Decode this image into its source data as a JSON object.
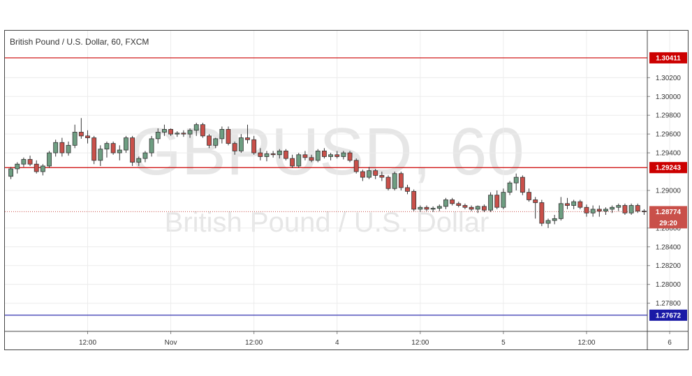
{
  "header": {
    "title": "British Pound / U.S. Dollar, 60, FXCM"
  },
  "watermark": {
    "symbol": "GBPUSD, 60",
    "name": "British Pound / U.S. Dollar"
  },
  "colors": {
    "up": "#6e9e82",
    "down": "#c9504a",
    "resistance": "#cc0000",
    "support": "#1a1aa6",
    "price": "#c9504a"
  },
  "chart_data": {
    "type": "candlestick",
    "title": "British Pound / U.S. Dollar, 60, FXCM",
    "ylim": [
      1.275,
      1.307
    ],
    "y_ticks": [
      "1.30200",
      "1.30000",
      "1.29800",
      "1.29600",
      "1.29400",
      "1.29000",
      "1.28600",
      "1.28400",
      "1.28200",
      "1.28000",
      "1.27800"
    ],
    "x_ticks": [
      {
        "label": "12:00",
        "bar": 12
      },
      {
        "label": "Nov",
        "bar": 25
      },
      {
        "label": "12:00",
        "bar": 38
      },
      {
        "label": "4",
        "bar": 51
      },
      {
        "label": "12:00",
        "bar": 64
      },
      {
        "label": "5",
        "bar": 77
      },
      {
        "label": "12:00",
        "bar": 90
      },
      {
        "label": "6",
        "bar": 103
      }
    ],
    "levels": [
      {
        "label": "1.30411",
        "value": 1.30411,
        "kind": "resistance"
      },
      {
        "label": "1.29243",
        "value": 1.29243,
        "kind": "resistance"
      },
      {
        "label": "1.27672",
        "value": 1.27672,
        "kind": "support"
      }
    ],
    "current_price": {
      "label": "1.28774",
      "value": 1.28774,
      "countdown": "29:20"
    },
    "ohlc": [
      [
        1.2915,
        1.2925,
        1.2912,
        1.2923
      ],
      [
        1.2923,
        1.293,
        1.2918,
        1.2928
      ],
      [
        1.2928,
        1.2935,
        1.2925,
        1.2933
      ],
      [
        1.2933,
        1.2937,
        1.2926,
        1.2928
      ],
      [
        1.2928,
        1.2932,
        1.2918,
        1.292
      ],
      [
        1.292,
        1.2928,
        1.2916,
        1.2926
      ],
      [
        1.2926,
        1.2942,
        1.2924,
        1.294
      ],
      [
        1.294,
        1.2954,
        1.2936,
        1.2951
      ],
      [
        1.2951,
        1.2956,
        1.2936,
        1.294
      ],
      [
        1.294,
        1.2952,
        1.2937,
        1.2948
      ],
      [
        1.2948,
        1.297,
        1.2945,
        1.2962
      ],
      [
        1.2962,
        1.2977,
        1.2955,
        1.2958
      ],
      [
        1.2958,
        1.2964,
        1.295,
        1.2956
      ],
      [
        1.2956,
        1.2958,
        1.2928,
        1.2932
      ],
      [
        1.2932,
        1.2948,
        1.2926,
        1.2944
      ],
      [
        1.2944,
        1.2952,
        1.2935,
        1.295
      ],
      [
        1.295,
        1.2952,
        1.2938,
        1.294
      ],
      [
        1.294,
        1.2948,
        1.2932,
        1.2943
      ],
      [
        1.2943,
        1.2958,
        1.294,
        1.2956
      ],
      [
        1.2956,
        1.2958,
        1.2926,
        1.293
      ],
      [
        1.293,
        1.2936,
        1.2926,
        1.2934
      ],
      [
        1.2934,
        1.2942,
        1.293,
        1.294
      ],
      [
        1.294,
        1.2958,
        1.2936,
        1.2955
      ],
      [
        1.2955,
        1.2966,
        1.295,
        1.2962
      ],
      [
        1.2962,
        1.297,
        1.2958,
        1.2965
      ],
      [
        1.2965,
        1.2966,
        1.2958,
        1.296
      ],
      [
        1.296,
        1.2963,
        1.2957,
        1.2961
      ],
      [
        1.2961,
        1.2964,
        1.2957,
        1.296
      ],
      [
        1.296,
        1.2966,
        1.2956,
        1.2964
      ],
      [
        1.2964,
        1.2972,
        1.2958,
        1.297
      ],
      [
        1.297,
        1.2972,
        1.2956,
        1.2958
      ],
      [
        1.2958,
        1.296,
        1.2945,
        1.2948
      ],
      [
        1.2948,
        1.2956,
        1.2945,
        1.2955
      ],
      [
        1.2955,
        1.2968,
        1.295,
        1.2965
      ],
      [
        1.2965,
        1.2968,
        1.2948,
        1.295
      ],
      [
        1.295,
        1.2952,
        1.2938,
        1.2942
      ],
      [
        1.2942,
        1.296,
        1.294,
        1.2956
      ],
      [
        1.2956,
        1.297,
        1.295,
        1.2954
      ],
      [
        1.2954,
        1.2958,
        1.2938,
        1.294
      ],
      [
        1.294,
        1.2945,
        1.2932,
        1.2936
      ],
      [
        1.2936,
        1.2942,
        1.2931,
        1.2939
      ],
      [
        1.2939,
        1.2942,
        1.2935,
        1.2938
      ],
      [
        1.2938,
        1.2944,
        1.2934,
        1.2942
      ],
      [
        1.2942,
        1.2944,
        1.2932,
        1.2934
      ],
      [
        1.2934,
        1.2938,
        1.2924,
        1.2926
      ],
      [
        1.2926,
        1.294,
        1.2924,
        1.2938
      ],
      [
        1.2938,
        1.2942,
        1.2932,
        1.2935
      ],
      [
        1.2935,
        1.2938,
        1.293,
        1.2932
      ],
      [
        1.2932,
        1.2944,
        1.293,
        1.2942
      ],
      [
        1.2942,
        1.2945,
        1.2934,
        1.2936
      ],
      [
        1.2936,
        1.294,
        1.2932,
        1.2938
      ],
      [
        1.2938,
        1.2942,
        1.2934,
        1.2936
      ],
      [
        1.2936,
        1.2942,
        1.2933,
        1.294
      ],
      [
        1.294,
        1.2942,
        1.293,
        1.2932
      ],
      [
        1.2932,
        1.2934,
        1.2918,
        1.292
      ],
      [
        1.292,
        1.2922,
        1.291,
        1.2914
      ],
      [
        1.2914,
        1.2925,
        1.2912,
        1.2921
      ],
      [
        1.2921,
        1.2923,
        1.2912,
        1.2916
      ],
      [
        1.2916,
        1.292,
        1.291,
        1.2914
      ],
      [
        1.2914,
        1.2916,
        1.29,
        1.2902
      ],
      [
        1.2902,
        1.292,
        1.29,
        1.2918
      ],
      [
        1.2918,
        1.292,
        1.29,
        1.2903
      ],
      [
        1.2903,
        1.2906,
        1.2896,
        1.2899
      ],
      [
        1.2899,
        1.2901,
        1.2878,
        1.288
      ],
      [
        1.288,
        1.2884,
        1.2877,
        1.2882
      ],
      [
        1.2882,
        1.2884,
        1.2878,
        1.288
      ],
      [
        1.288,
        1.2883,
        1.2877,
        1.2881
      ],
      [
        1.2881,
        1.2885,
        1.2878,
        1.2883
      ],
      [
        1.2883,
        1.2892,
        1.288,
        1.289
      ],
      [
        1.289,
        1.2892,
        1.2884,
        1.2886
      ],
      [
        1.2886,
        1.2888,
        1.2882,
        1.2884
      ],
      [
        1.2884,
        1.2886,
        1.288,
        1.2882
      ],
      [
        1.2882,
        1.2884,
        1.2878,
        1.288
      ],
      [
        1.288,
        1.2884,
        1.2876,
        1.2883
      ],
      [
        1.2883,
        1.2885,
        1.2877,
        1.2879
      ],
      [
        1.2879,
        1.2898,
        1.2877,
        1.2895
      ],
      [
        1.2895,
        1.29,
        1.288,
        1.2882
      ],
      [
        1.2882,
        1.2902,
        1.288,
        1.2898
      ],
      [
        1.2898,
        1.291,
        1.2895,
        1.2908
      ],
      [
        1.2908,
        1.2918,
        1.29,
        1.2914
      ],
      [
        1.2914,
        1.2916,
        1.2895,
        1.2898
      ],
      [
        1.2898,
        1.2902,
        1.2888,
        1.289
      ],
      [
        1.289,
        1.2893,
        1.287,
        1.2887
      ],
      [
        1.2887,
        1.289,
        1.2862,
        1.2865
      ],
      [
        1.2865,
        1.287,
        1.286,
        1.2868
      ],
      [
        1.2868,
        1.2874,
        1.2864,
        1.287
      ],
      [
        1.287,
        1.2893,
        1.2868,
        1.2886
      ],
      [
        1.2886,
        1.2892,
        1.288,
        1.2884
      ],
      [
        1.2884,
        1.289,
        1.288,
        1.2888
      ],
      [
        1.2888,
        1.289,
        1.288,
        1.2882
      ],
      [
        1.2882,
        1.2885,
        1.2872,
        1.2876
      ],
      [
        1.2876,
        1.2884,
        1.2872,
        1.288
      ],
      [
        1.288,
        1.2884,
        1.2872,
        1.2878
      ],
      [
        1.2878,
        1.2882,
        1.2874,
        1.288
      ],
      [
        1.288,
        1.2884,
        1.2876,
        1.2882
      ],
      [
        1.2882,
        1.2886,
        1.2878,
        1.2884
      ],
      [
        1.2884,
        1.2886,
        1.2874,
        1.2876
      ],
      [
        1.2876,
        1.2886,
        1.2874,
        1.2884
      ],
      [
        1.2884,
        1.2886,
        1.2876,
        1.2878
      ],
      [
        1.2878,
        1.288,
        1.2874,
        1.28774
      ]
    ]
  }
}
